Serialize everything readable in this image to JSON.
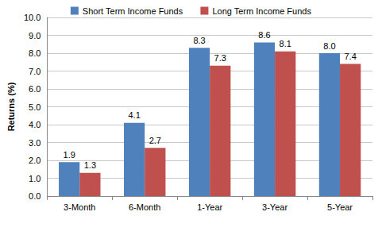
{
  "chart_data": {
    "type": "bar",
    "y_label": "Returns (%)",
    "categories": [
      "3-Month",
      "6-Month",
      "1-Year",
      "3-Year",
      "5-Year"
    ],
    "series": [
      {
        "name": "Short Term Income Funds",
        "color": "#4f81bd",
        "values": [
          1.9,
          4.1,
          8.3,
          8.6,
          8.0
        ],
        "value_labels": [
          "1.9",
          "4.1",
          "8.3",
          "8.6",
          "8.0"
        ]
      },
      {
        "name": "Long Term Income Funds",
        "color": "#c0504d",
        "values": [
          1.3,
          2.7,
          7.3,
          8.1,
          7.4
        ],
        "value_labels": [
          "1.3",
          "2.7",
          "7.3",
          "8.1",
          "7.4"
        ]
      }
    ],
    "ylim": [
      0,
      10
    ],
    "yticks": [
      {
        "value": 0,
        "label": "0.0"
      },
      {
        "value": 1,
        "label": "1.0"
      },
      {
        "value": 2,
        "label": "2.0"
      },
      {
        "value": 3,
        "label": "3.0"
      },
      {
        "value": 4,
        "label": "4.0"
      },
      {
        "value": 5,
        "label": "5.0"
      },
      {
        "value": 6,
        "label": "6.0"
      },
      {
        "value": 7,
        "label": "7.0"
      },
      {
        "value": 8,
        "label": "8.0"
      },
      {
        "value": 9,
        "label": "9.0"
      },
      {
        "value": 10,
        "label": "10.0"
      }
    ],
    "grid": true,
    "legend": "top",
    "data_labels": true
  }
}
